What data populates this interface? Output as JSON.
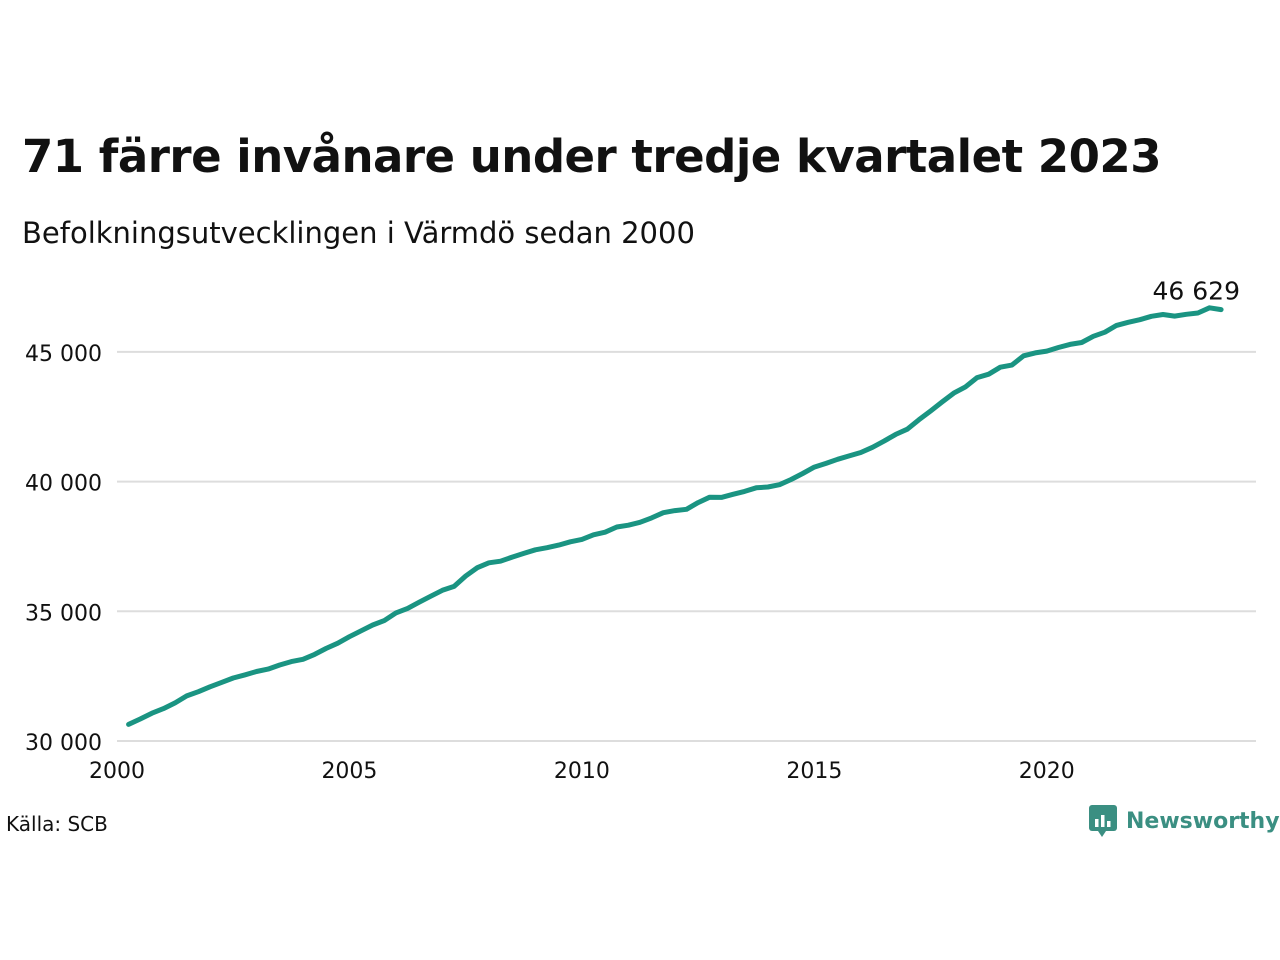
{
  "title": "71 färre invånare under tredje kvartalet 2023",
  "subtitle": "Befolkningsutvecklingen i Värmdö sedan 2000",
  "source": "Källa: SCB",
  "brand": {
    "name": "Newsworthy",
    "icon": "newsworthy-logo-icon",
    "color": "#3b8f82"
  },
  "colors": {
    "line": "#1a9482",
    "grid": "#dddddd",
    "text": "#111111"
  },
  "chart_data": {
    "type": "line",
    "title": "71 färre invånare under tredje kvartalet 2023",
    "subtitle": "Befolkningsutvecklingen i Värmdö sedan 2000",
    "xlabel": "",
    "ylabel": "",
    "xlim": [
      2000,
      2024.5
    ],
    "ylim": [
      30000,
      47000
    ],
    "grid": true,
    "xticks": [
      {
        "value": 2000,
        "label": "2000"
      },
      {
        "value": 2005,
        "label": "2005"
      },
      {
        "value": 2010,
        "label": "2010"
      },
      {
        "value": 2015,
        "label": "2015"
      },
      {
        "value": 2020,
        "label": "2020"
      }
    ],
    "yticks": [
      {
        "value": 30000,
        "label": "30 000"
      },
      {
        "value": 35000,
        "label": "35 000"
      },
      {
        "value": 40000,
        "label": "40 000"
      },
      {
        "value": 45000,
        "label": "45 000"
      }
    ],
    "end_label": {
      "x": 2023.75,
      "y": 46629,
      "label": "46 629"
    },
    "series": [
      {
        "x": [
          2000.25,
          2000.5,
          2000.75,
          2001.0,
          2001.25,
          2001.5,
          2001.75,
          2002.0,
          2002.25,
          2002.5,
          2002.75,
          2003.0,
          2003.25,
          2003.5,
          2003.75,
          2004.0,
          2004.25,
          2004.5,
          2004.75,
          2005.0,
          2005.25,
          2005.5,
          2005.75,
          2006.0,
          2006.25,
          2006.5,
          2006.75,
          2007.0,
          2007.25,
          2007.5,
          2007.75,
          2008.0,
          2008.25,
          2008.5,
          2008.75,
          2009.0,
          2009.25,
          2009.5,
          2009.75,
          2010.0,
          2010.25,
          2010.5,
          2010.75,
          2011.0,
          2011.25,
          2011.5,
          2011.75,
          2012.0,
          2012.25,
          2012.5,
          2012.75,
          2013.0,
          2013.25,
          2013.5,
          2013.75,
          2014.0,
          2014.25,
          2014.5,
          2014.75,
          2015.0,
          2015.25,
          2015.5,
          2015.75,
          2016.0,
          2016.25,
          2016.5,
          2016.75,
          2017.0,
          2017.25,
          2017.5,
          2017.75,
          2018.0,
          2018.25,
          2018.5,
          2018.75,
          2019.0,
          2019.25,
          2019.5,
          2019.75,
          2020.0,
          2020.25,
          2020.5,
          2020.75,
          2021.0,
          2021.25,
          2021.5,
          2021.75,
          2022.0,
          2022.25,
          2022.5,
          2022.75,
          2023.0,
          2023.25,
          2023.5,
          2023.75
        ],
        "values": [
          30640,
          30850,
          31070,
          31250,
          31470,
          31740,
          31900,
          32090,
          32260,
          32430,
          32550,
          32680,
          32770,
          32930,
          33060,
          33150,
          33340,
          33570,
          33770,
          34020,
          34250,
          34470,
          34640,
          34940,
          35110,
          35350,
          35580,
          35810,
          35960,
          36360,
          36680,
          36870,
          36930,
          37090,
          37230,
          37370,
          37450,
          37550,
          37680,
          37770,
          37950,
          38050,
          38250,
          38320,
          38430,
          38600,
          38800,
          38880,
          38930,
          39190,
          39400,
          39390,
          39510,
          39620,
          39760,
          39790,
          39880,
          40080,
          40310,
          40560,
          40700,
          40860,
          40990,
          41120,
          41320,
          41560,
          41820,
          42020,
          42380,
          42720,
          43070,
          43410,
          43650,
          44010,
          44140,
          44410,
          44490,
          44850,
          44960,
          45030,
          45170,
          45290,
          45360,
          45600,
          45760,
          46020,
          46140,
          46240,
          46370,
          46440,
          46380,
          46450,
          46500,
          46700,
          46629
        ]
      }
    ]
  }
}
